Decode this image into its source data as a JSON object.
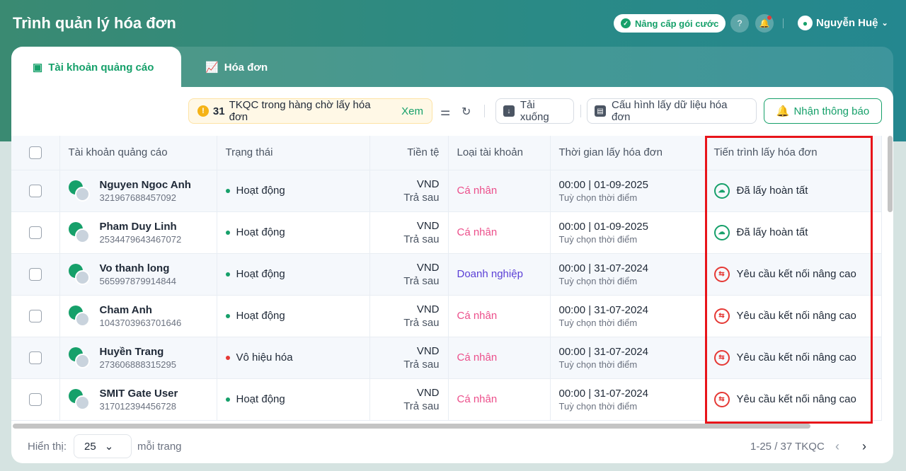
{
  "header": {
    "title": "Trình quản lý hóa đơn",
    "upgrade_label": "Nâng cấp gói cước",
    "user_name": "Nguyễn Huệ"
  },
  "tabs": [
    {
      "label": "Tài khoản quảng cáo",
      "active": true
    },
    {
      "label": "Hóa đơn",
      "active": false
    }
  ],
  "toolbar": {
    "queue_count": "31",
    "queue_text": "TKQC trong hàng chờ lấy hóa đơn",
    "queue_link": "Xem",
    "download": "Tải xuống",
    "config": "Cấu hình lấy dữ liệu hóa đơn",
    "notify": "Nhận thông báo"
  },
  "columns": [
    "Tài khoản quảng cáo",
    "Trạng thái",
    "Tiền tệ",
    "Loại tài khoản",
    "Thời gian lấy hóa đơn",
    "Tiến trình lấy hóa đơn"
  ],
  "rows": [
    {
      "name": "Nguyen Ngoc Anh",
      "id": "321967688457092",
      "status": "Hoạt động",
      "currency": "VND",
      "payment": "Trả sau",
      "type": "Cá nhân",
      "time": "00:00 | 01-09-2025",
      "time_note": "Tuỳ chọn thời điểm",
      "progress": "Đã lấy hoàn tất"
    },
    {
      "name": "Pham Duy Linh",
      "id": "2534479643467072",
      "status": "Hoạt động",
      "currency": "VND",
      "payment": "Trả sau",
      "type": "Cá nhân",
      "time": "00:00 | 01-09-2025",
      "time_note": "Tuỳ chọn thời điểm",
      "progress": "Đã lấy hoàn tất"
    },
    {
      "name": "Vo thanh long",
      "id": "565997879914844",
      "status": "Hoạt động",
      "currency": "VND",
      "payment": "Trả sau",
      "type": "Doanh nghiệp",
      "time": "00:00 | 31-07-2024",
      "time_note": "Tuỳ chọn thời điểm",
      "progress": "Yêu cầu kết nối nâng cao"
    },
    {
      "name": "Cham Anh",
      "id": "1043703963701646",
      "status": "Hoạt động",
      "currency": "VND",
      "payment": "Trả sau",
      "type": "Cá nhân",
      "time": "00:00 | 31-07-2024",
      "time_note": "Tuỳ chọn thời điểm",
      "progress": "Yêu cầu kết nối nâng cao"
    },
    {
      "name": "Huyền Trang",
      "id": "273606888315295",
      "status": "Vô hiệu hóa",
      "currency": "VND",
      "payment": "Trả sau",
      "type": "Cá nhân",
      "time": "00:00 | 31-07-2024",
      "time_note": "Tuỳ chọn thời điểm",
      "progress": "Yêu cầu kết nối nâng cao"
    },
    {
      "name": "SMIT Gate User",
      "id": "317012394456728",
      "status": "Hoạt động",
      "currency": "VND",
      "payment": "Trả sau",
      "type": "Cá nhân",
      "time": "00:00 | 31-07-2024",
      "time_note": "Tuỳ chọn thời điểm",
      "progress": "Yêu cầu kết nối nâng cao"
    }
  ],
  "footer": {
    "show_label": "Hiển thị:",
    "page_size": "25",
    "per_page": "mỗi trang",
    "range": "1-25 / 37 TKQC"
  },
  "colors": {
    "brand": "#16a06a",
    "active": "#16a06a",
    "disabled": "#e53935",
    "individual": "#ec4f8b",
    "business": "#5b3fd6",
    "done": "#16a06a",
    "advanced": "#e53935",
    "highlight": "#e8141a"
  }
}
